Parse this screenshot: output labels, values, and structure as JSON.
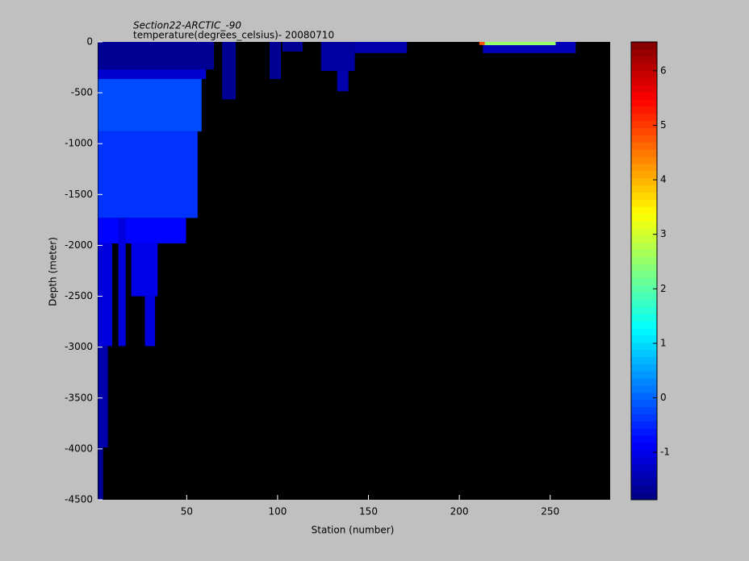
{
  "chart_data": {
    "type": "heatmap",
    "title": "Section22-ARCTIC_-90",
    "subtitle": "temperature(degrees_celsius)- 20080710",
    "x_label": "Station (number)",
    "y_label": "Depth (meter)",
    "xlim": [
      1,
      283
    ],
    "xticks": [
      50,
      100,
      150,
      200,
      250
    ],
    "ylim": [
      -4500,
      0
    ],
    "yticks": [
      -4500,
      -4000,
      -3500,
      -3000,
      -2500,
      -2000,
      -1500,
      -1000,
      -500,
      0
    ],
    "background": "#000000",
    "colormap": "jet",
    "clim": [
      -1.87,
      6.53
    ],
    "cticks": [
      -1,
      0,
      1,
      2,
      3,
      4,
      5,
      6
    ],
    "cells": [
      {
        "x": [
          1.3,
          65
        ],
        "y": [
          -270,
          0
        ],
        "value": -1.7
      },
      {
        "x": [
          1.3,
          60.6
        ],
        "y": [
          -365,
          -270
        ],
        "value": -1.2
      },
      {
        "x": [
          1.3,
          58.2
        ],
        "y": [
          -880,
          -365
        ],
        "value": -0.2
      },
      {
        "x": [
          1.3,
          56
        ],
        "y": [
          -1730,
          -880
        ],
        "value": -0.4
      },
      {
        "x": [
          1.3,
          49.6
        ],
        "y": [
          -1980,
          -1730
        ],
        "value": -0.8
      },
      {
        "x": [
          19.5,
          34
        ],
        "y": [
          -2500,
          -1980
        ],
        "value": -1.0
      },
      {
        "x": [
          1.3,
          9
        ],
        "y": [
          -2990,
          -1980
        ],
        "value": -1.1
      },
      {
        "x": [
          12.4,
          16.4
        ],
        "y": [
          -2990,
          -1730
        ],
        "value": -1.1
      },
      {
        "x": [
          27,
          32.6
        ],
        "y": [
          -2990,
          -2500
        ],
        "value": -1.1
      },
      {
        "x": [
          1.3,
          6.6
        ],
        "y": [
          -3985,
          -2990
        ],
        "value": -1.5
      },
      {
        "x": [
          1.3,
          4
        ],
        "y": [
          -4500,
          -3985
        ],
        "value": -1.7
      },
      {
        "x": [
          69.5,
          77
        ],
        "y": [
          -565,
          0
        ],
        "value": -1.7
      },
      {
        "x": [
          95.6,
          101.8
        ],
        "y": [
          -365,
          0
        ],
        "value": -1.7
      },
      {
        "x": [
          102.7,
          113.8
        ],
        "y": [
          -95,
          0
        ],
        "value": -1.7
      },
      {
        "x": [
          123.9,
          142.5
        ],
        "y": [
          -285,
          0
        ],
        "value": -1.6
      },
      {
        "x": [
          132.8,
          139
        ],
        "y": [
          -485,
          -285
        ],
        "value": -1.5
      },
      {
        "x": [
          142.5,
          171.2
        ],
        "y": [
          -110,
          0
        ],
        "value": -1.5
      },
      {
        "x": [
          213,
          264
        ],
        "y": [
          -110,
          0
        ],
        "value": -1.4
      },
      {
        "x": [
          213,
          253
        ],
        "y": [
          -32,
          0
        ],
        "value": 2.5
      },
      {
        "x": [
          211,
          214
        ],
        "y": [
          -30,
          0
        ],
        "value": 4.8
      }
    ]
  }
}
